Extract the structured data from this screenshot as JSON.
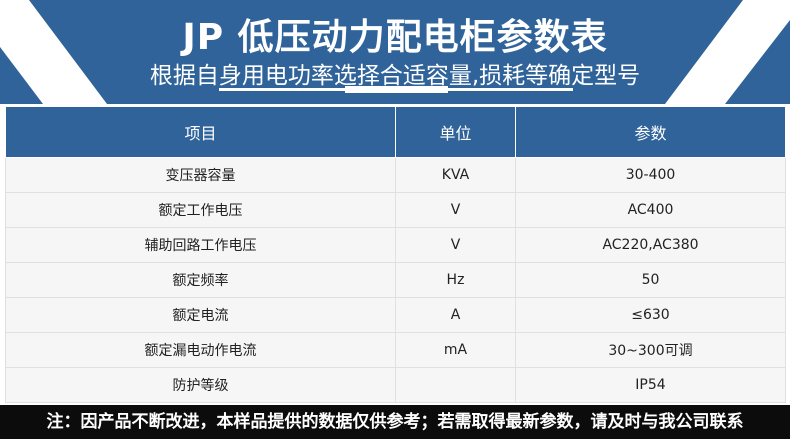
{
  "header": {
    "title": "JP 低压动力配电柜参数表",
    "subtitle": "根据自身用电功率选择合适容量,损耗等确定型号",
    "color": "#2f6399"
  },
  "table": {
    "columns": [
      "项目",
      "单位",
      "参数"
    ],
    "rows": [
      [
        "变压器容量",
        "KVA",
        "30-400"
      ],
      [
        "额定工作电压",
        "V",
        "AC400"
      ],
      [
        "辅助回路工作电压",
        "V",
        "AC220,AC380"
      ],
      [
        "额定频率",
        "Hz",
        "50"
      ],
      [
        "额定电流",
        "A",
        "≤630"
      ],
      [
        "额定漏电动作电流",
        "mA",
        "30~300可调"
      ],
      [
        "防护等级",
        "",
        "IP54"
      ]
    ]
  },
  "footer": {
    "note": "注：因产品不断改进，本样品提供的数据仅供参考；若需取得最新参数，请及时与我公司联系"
  }
}
